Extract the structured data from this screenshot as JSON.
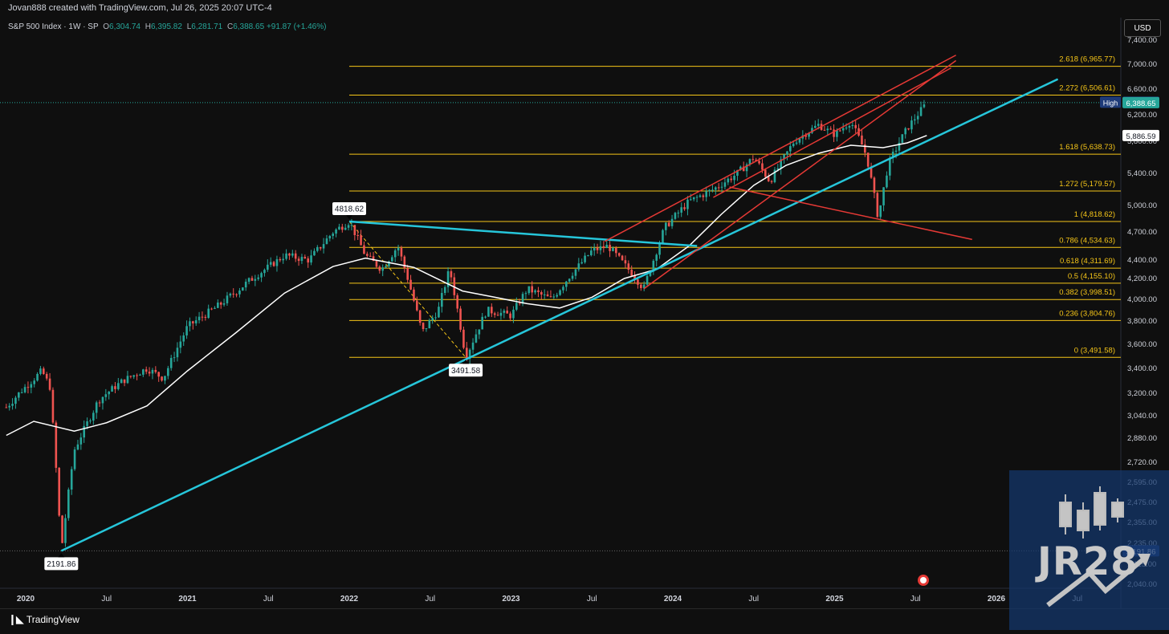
{
  "header": {
    "credit": "Jovan888 created with TradingView.com, Jul 26, 2025 20:07 UTC-4",
    "symbol": "S&P 500 Index · 1W · SP",
    "open_key": "O",
    "open": "6,304.74",
    "high_key": "H",
    "high": "6,395.82",
    "low_key": "L",
    "low": "6,281.71",
    "close_key": "C",
    "close": "6,388.65",
    "change": "+91.87 (+1.46%)",
    "currency": "USD"
  },
  "footer": {
    "brand": "TradingView"
  },
  "watermark": {
    "text": "JR28"
  },
  "chart_data": {
    "type": "candlestick",
    "symbol": "S&P 500 Index",
    "interval": "1W",
    "ylim": [
      1940,
      7460
    ],
    "y_ticks": [
      {
        "value": 7400,
        "label": "7,400.00"
      },
      {
        "value": 7000,
        "label": "7,000.00"
      },
      {
        "value": 6600,
        "label": "6,600.00"
      },
      {
        "value": 6200,
        "label": "6,200.00"
      },
      {
        "value": 5800,
        "label": "5,800.00"
      },
      {
        "value": 5400,
        "label": "5,400.00"
      },
      {
        "value": 5000,
        "label": "5,000.00"
      },
      {
        "value": 4700,
        "label": "4,700.00"
      },
      {
        "value": 4400,
        "label": "4,400.00"
      },
      {
        "value": 4200,
        "label": "4,200.00"
      },
      {
        "value": 4000,
        "label": "4,000.00"
      },
      {
        "value": 3800,
        "label": "3,800.00"
      },
      {
        "value": 3600,
        "label": "3,600.00"
      },
      {
        "value": 3400,
        "label": "3,400.00"
      },
      {
        "value": 3200,
        "label": "3,200.00"
      },
      {
        "value": 3040,
        "label": "3,040.00"
      },
      {
        "value": 2880,
        "label": "2,880.00"
      },
      {
        "value": 2720,
        "label": "2,720.00"
      },
      {
        "value": 2595,
        "label": "2,595.00"
      },
      {
        "value": 2475,
        "label": "2,475.00"
      },
      {
        "value": 2355,
        "label": "2,355.00"
      },
      {
        "value": 2235,
        "label": "2,235.00"
      },
      {
        "value": 2115,
        "label": "2,115.00"
      },
      {
        "value": 2040,
        "label": "2,040.00"
      }
    ],
    "x_ticks": [
      {
        "t": 2020.0,
        "label": "2020",
        "bold": true
      },
      {
        "t": 2020.5,
        "label": "Jul",
        "bold": false
      },
      {
        "t": 2021.0,
        "label": "2021",
        "bold": true
      },
      {
        "t": 2021.5,
        "label": "Jul",
        "bold": false
      },
      {
        "t": 2022.0,
        "label": "2022",
        "bold": true
      },
      {
        "t": 2022.5,
        "label": "Jul",
        "bold": false
      },
      {
        "t": 2023.0,
        "label": "2023",
        "bold": true
      },
      {
        "t": 2023.5,
        "label": "Jul",
        "bold": false
      },
      {
        "t": 2024.0,
        "label": "2024",
        "bold": true
      },
      {
        "t": 2024.5,
        "label": "Jul",
        "bold": false
      },
      {
        "t": 2025.0,
        "label": "2025",
        "bold": true
      },
      {
        "t": 2025.5,
        "label": "Jul",
        "bold": false
      },
      {
        "t": 2026.0,
        "label": "2026",
        "bold": true
      },
      {
        "t": 2026.5,
        "label": "Jul",
        "bold": false
      }
    ],
    "price_path": [
      [
        2019.88,
        3100
      ],
      [
        2020.1,
        3380
      ],
      [
        2020.15,
        3250
      ],
      [
        2020.22,
        2191.86
      ],
      [
        2020.3,
        2800
      ],
      [
        2020.45,
        3150
      ],
      [
        2020.6,
        3300
      ],
      [
        2020.75,
        3400
      ],
      [
        2020.85,
        3320
      ],
      [
        2021.0,
        3750
      ],
      [
        2021.2,
        3950
      ],
      [
        2021.4,
        4200
      ],
      [
        2021.6,
        4450
      ],
      [
        2021.75,
        4400
      ],
      [
        2021.9,
        4700
      ],
      [
        2022.0,
        4818.62
      ],
      [
        2022.1,
        4450
      ],
      [
        2022.2,
        4300
      ],
      [
        2022.3,
        4550
      ],
      [
        2022.45,
        3700
      ],
      [
        2022.55,
        3900
      ],
      [
        2022.62,
        4300
      ],
      [
        2022.72,
        3491.58
      ],
      [
        2022.85,
        3900
      ],
      [
        2023.0,
        3850
      ],
      [
        2023.1,
        4100
      ],
      [
        2023.25,
        4000
      ],
      [
        2023.5,
        4500
      ],
      [
        2023.6,
        4550
      ],
      [
        2023.75,
        4250
      ],
      [
        2023.82,
        4100
      ],
      [
        2023.95,
        4750
      ],
      [
        2024.1,
        5050
      ],
      [
        2024.25,
        5200
      ],
      [
        2024.4,
        5400
      ],
      [
        2024.5,
        5600
      ],
      [
        2024.6,
        5300
      ],
      [
        2024.75,
        5800
      ],
      [
        2024.9,
        6050
      ],
      [
        2025.0,
        5900
      ],
      [
        2025.1,
        6100
      ],
      [
        2025.2,
        5600
      ],
      [
        2025.27,
        4850
      ],
      [
        2025.33,
        5500
      ],
      [
        2025.45,
        6000
      ],
      [
        2025.57,
        6388.65
      ]
    ],
    "moving_average": [
      [
        2019.88,
        2900
      ],
      [
        2020.05,
        3000
      ],
      [
        2020.3,
        2930
      ],
      [
        2020.5,
        2990
      ],
      [
        2020.75,
        3110
      ],
      [
        2021.0,
        3380
      ],
      [
        2021.3,
        3700
      ],
      [
        2021.6,
        4060
      ],
      [
        2021.9,
        4330
      ],
      [
        2022.1,
        4420
      ],
      [
        2022.4,
        4320
      ],
      [
        2022.7,
        4080
      ],
      [
        2022.9,
        4020
      ],
      [
        2023.1,
        3960
      ],
      [
        2023.3,
        3920
      ],
      [
        2023.5,
        4020
      ],
      [
        2023.7,
        4200
      ],
      [
        2023.9,
        4300
      ],
      [
        2024.1,
        4550
      ],
      [
        2024.3,
        4900
      ],
      [
        2024.5,
        5250
      ],
      [
        2024.7,
        5500
      ],
      [
        2024.9,
        5650
      ],
      [
        2025.1,
        5750
      ],
      [
        2025.3,
        5720
      ],
      [
        2025.45,
        5780
      ],
      [
        2025.57,
        5886.59
      ]
    ],
    "fibonacci": [
      {
        "ratio": "2.618",
        "value": 6965.77,
        "label": "2.618 (6,965.77)"
      },
      {
        "ratio": "2.272",
        "value": 6506.61,
        "label": "2.272 (6,506.61)"
      },
      {
        "ratio": "1.618",
        "value": 5638.73,
        "label": "1.618 (5,638.73)"
      },
      {
        "ratio": "1.272",
        "value": 5179.57,
        "label": "1.272 (5,179.57)"
      },
      {
        "ratio": "1",
        "value": 4818.62,
        "label": "1 (4,818.62)"
      },
      {
        "ratio": "0.786",
        "value": 4534.63,
        "label": "0.786 (4,534.63)"
      },
      {
        "ratio": "0.618",
        "value": 4311.69,
        "label": "0.618 (4,311.69)"
      },
      {
        "ratio": "0.5",
        "value": 4155.1,
        "label": "0.5 (4,155.10)"
      },
      {
        "ratio": "0.382",
        "value": 3998.51,
        "label": "0.382 (3,998.51)"
      },
      {
        "ratio": "0.236",
        "value": 3804.76,
        "label": "0.236 (3,804.76)"
      },
      {
        "ratio": "0",
        "value": 3491.58,
        "label": "0 (3,491.58)"
      }
    ],
    "fib_start": 2022.0,
    "trendlines": [
      {
        "name": "long-term-support",
        "color": "#26c6da",
        "from": [
          2020.22,
          2191.86
        ],
        "to": [
          2026.38,
          6760
        ]
      },
      {
        "name": "2022-resistance",
        "color": "#26c6da",
        "from": [
          2022.0,
          4818.62
        ],
        "to": [
          2024.15,
          4550
        ]
      },
      {
        "name": "channel-upper",
        "color": "#e53935",
        "from": [
          2023.58,
          4600
        ],
        "to": [
          2025.75,
          7150
        ]
      },
      {
        "name": "channel-lower",
        "color": "#e53935",
        "from": [
          2023.82,
          4100
        ],
        "to": [
          2025.75,
          7060
        ]
      },
      {
        "name": "wedge-lower-upper",
        "color": "#e53935",
        "from": [
          2024.25,
          5100
        ],
        "to": [
          2025.72,
          6940
        ]
      },
      {
        "name": "falling-line",
        "color": "#e53935",
        "from": [
          2024.35,
          5230
        ],
        "to": [
          2025.85,
          4620
        ]
      }
    ],
    "fib_connector": {
      "from": [
        2022.0,
        4818.62
      ],
      "to": [
        2022.72,
        3491.58
      ],
      "color": "#f5c518"
    },
    "point_labels": [
      {
        "t": 2022.0,
        "value": 4818.62,
        "text": "4818.62",
        "position": "above"
      },
      {
        "t": 2022.72,
        "value": 3491.58,
        "text": "3491.58",
        "position": "below"
      },
      {
        "t": 2020.22,
        "value": 2191.86,
        "text": "2191.86",
        "position": "below"
      }
    ],
    "price_badges": [
      {
        "text": "6,395.82",
        "value": 6395.82,
        "tag": "High",
        "bg": "#1e3a78"
      },
      {
        "text": "6,388.65",
        "value": 6388.65,
        "tag": "",
        "bg": "#26a69a"
      },
      {
        "text": "5,886.59",
        "value": 5886.59,
        "tag": "",
        "bg": "#ffffff"
      },
      {
        "text": "2,191.86",
        "value": 2191.86,
        "tag": "",
        "bg": "#1e3a78"
      }
    ],
    "current_price": 6388.65,
    "low_line": 2191.86
  }
}
